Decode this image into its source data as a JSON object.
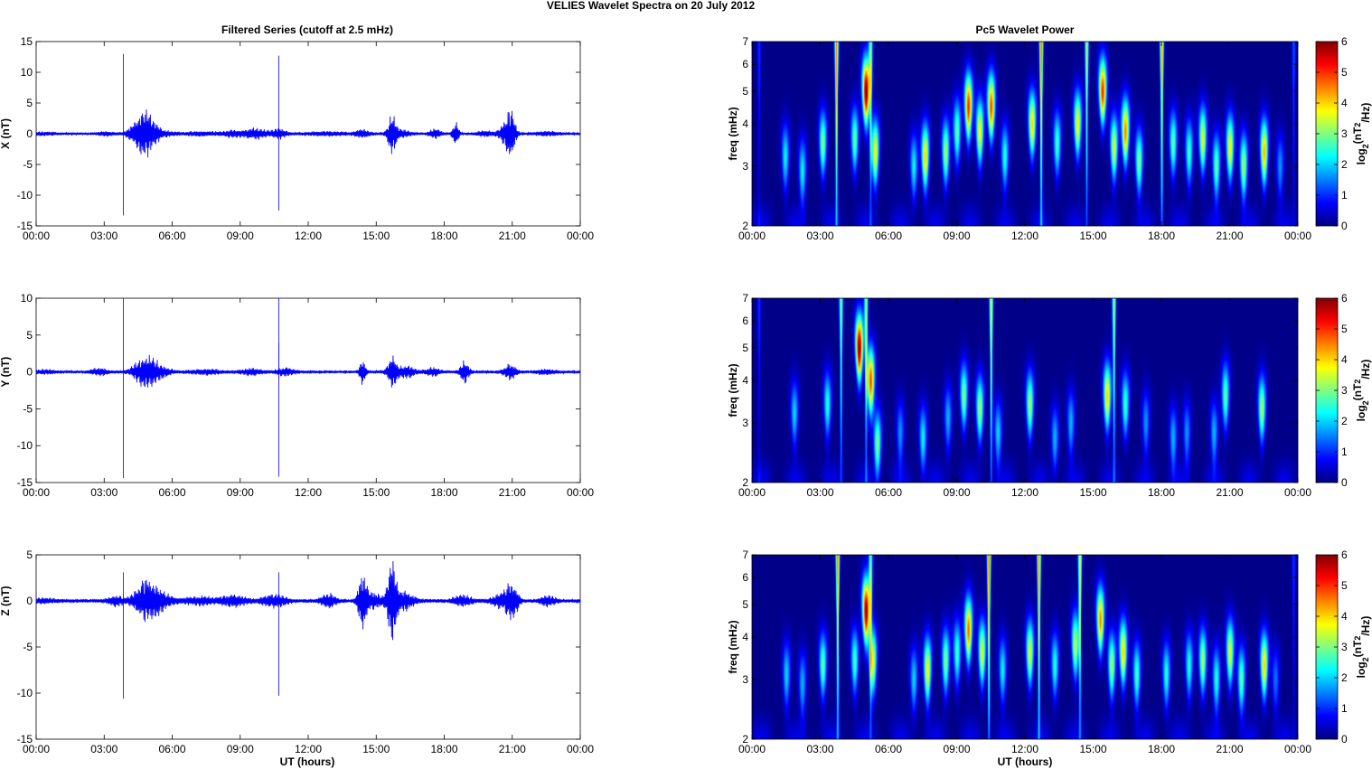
{
  "figure": {
    "suptitle": "VELIES Wavelet Spectra on 20 July      2012",
    "left_title": "Filtered Series (cutoff at 2.5 mHz)",
    "right_title": "Pc5 Wavelet Power",
    "xlabel": "UT (hours)",
    "time_ticks": [
      "00:00",
      "03:00",
      "06:00",
      "09:00",
      "12:00",
      "15:00",
      "18:00",
      "21:00",
      "00:00"
    ]
  },
  "chart_data": [
    {
      "type": "line",
      "panel": "X",
      "ylabel": "X (nT)",
      "ylim": [
        -15,
        15
      ],
      "yticks": [
        15,
        10,
        5,
        0,
        -5,
        -10,
        -15
      ],
      "color": "#0000ff",
      "xlim_hours": [
        0,
        24
      ],
      "series": [
        {
          "name": "",
          "spikes": [
            [
              3.85,
              13,
              -13.3
            ],
            [
              10.7,
              12.7,
              -12.5
            ]
          ],
          "bursts": [
            [
              0.35,
              0.8,
              0.2
            ],
            [
              3.1,
              0.5,
              0.3
            ],
            [
              4.65,
              0.7,
              2.8
            ],
            [
              4.95,
              0.6,
              1.3
            ],
            [
              5.4,
              1.0,
              0.5
            ],
            [
              7.2,
              1.0,
              0.3
            ],
            [
              8.7,
              0.9,
              0.5
            ],
            [
              9.7,
              0.7,
              0.8
            ],
            [
              10.7,
              0.5,
              0.8
            ],
            [
              12.8,
              1.3,
              0.3
            ],
            [
              14.4,
              0.5,
              0.6
            ],
            [
              15.7,
              0.3,
              3.0
            ],
            [
              16.1,
              0.6,
              0.6
            ],
            [
              17.6,
              0.4,
              0.7
            ],
            [
              18.5,
              0.2,
              2.0
            ],
            [
              19.8,
              0.6,
              0.4
            ],
            [
              20.7,
              0.4,
              1.6
            ],
            [
              20.95,
              0.3,
              3.3
            ],
            [
              22.5,
              0.8,
              0.3
            ]
          ]
        }
      ]
    },
    {
      "type": "line",
      "panel": "Y",
      "ylabel": "Y (nT)",
      "ylim": [
        -15,
        10
      ],
      "yticks": [
        10,
        5,
        0,
        -5,
        -10,
        -15
      ],
      "color": "#0000ff",
      "xlim_hours": [
        0,
        24
      ],
      "series": [
        {
          "name": "",
          "spikes": [
            [
              3.85,
              10,
              -14.4
            ],
            [
              10.7,
              10,
              -14.2
            ],
            [
              10.7,
              3.9,
              -1
            ]
          ],
          "bursts": [
            [
              0.35,
              0.8,
              0.2
            ],
            [
              2.8,
              0.5,
              0.5
            ],
            [
              4.75,
              0.7,
              1.8
            ],
            [
              5.3,
              0.8,
              1.0
            ],
            [
              7.5,
              1.0,
              0.3
            ],
            [
              9.5,
              0.7,
              0.4
            ],
            [
              11.0,
              0.6,
              0.5
            ],
            [
              14.4,
              0.2,
              1.8
            ],
            [
              15.7,
              0.3,
              2.1
            ],
            [
              16.3,
              0.6,
              0.8
            ],
            [
              17.5,
              0.5,
              0.5
            ],
            [
              18.9,
              0.3,
              1.5
            ],
            [
              20.9,
              0.4,
              1.0
            ],
            [
              22.5,
              0.6,
              0.3
            ]
          ]
        }
      ]
    },
    {
      "type": "line",
      "panel": "Z",
      "ylabel": "Z (nT)",
      "ylim": [
        -15,
        5
      ],
      "yticks": [
        5,
        0,
        -5,
        -10,
        -15
      ],
      "color": "#0000ff",
      "xlim_hours": [
        0,
        24
      ],
      "series": [
        {
          "name": "",
          "spikes": [
            [
              3.85,
              3.1,
              -10.6
            ],
            [
              10.7,
              3.1,
              -10.3
            ]
          ],
          "bursts": [
            [
              0.35,
              0.8,
              0.2
            ],
            [
              3.5,
              0.5,
              0.5
            ],
            [
              4.85,
              0.8,
              2.0
            ],
            [
              5.4,
              0.9,
              0.8
            ],
            [
              7.2,
              1.0,
              0.4
            ],
            [
              8.7,
              0.9,
              0.6
            ],
            [
              10.5,
              0.8,
              0.7
            ],
            [
              12.9,
              0.5,
              0.8
            ],
            [
              14.4,
              0.3,
              3.0
            ],
            [
              14.9,
              0.6,
              0.8
            ],
            [
              15.7,
              0.3,
              4.4
            ],
            [
              16.2,
              0.7,
              1.0
            ],
            [
              18.8,
              0.6,
              0.6
            ],
            [
              20.5,
              0.6,
              0.8
            ],
            [
              21.0,
              0.4,
              1.9
            ],
            [
              22.6,
              0.5,
              0.5
            ]
          ]
        }
      ]
    },
    {
      "type": "heatmap",
      "panel": "X",
      "ylabel": "freq (mHz)",
      "ylim": [
        2,
        7
      ],
      "yscale": "log",
      "yticks": [
        2,
        3,
        4,
        5,
        6,
        7
      ],
      "colorbar_label": "log2(nT2/Hz)",
      "clim": [
        0,
        6
      ],
      "colorbar_ticks": [
        0,
        1,
        2,
        3,
        4,
        5,
        6
      ],
      "xlim_hours": [
        0,
        24
      ],
      "colormap": "jet",
      "blobs": [
        [
          1.45,
          3.2,
          2.2
        ],
        [
          2.2,
          2.9,
          2.2
        ],
        [
          3.1,
          3.5,
          3.0
        ],
        [
          3.7,
          7.0,
          4.5
        ],
        [
          4.5,
          3.6,
          2.8
        ],
        [
          5.0,
          5.0,
          6.0
        ],
        [
          5.4,
          3.3,
          3.8
        ],
        [
          5.2,
          7.0,
          2.6
        ],
        [
          7.1,
          3.0,
          2.2
        ],
        [
          7.6,
          3.2,
          4.0
        ],
        [
          8.5,
          3.3,
          3.2
        ],
        [
          9.0,
          3.8,
          2.8
        ],
        [
          9.5,
          4.5,
          5.0
        ],
        [
          10.0,
          3.8,
          3.8
        ],
        [
          10.5,
          4.5,
          4.8
        ],
        [
          11.1,
          3.2,
          2.4
        ],
        [
          12.3,
          4.0,
          4.0
        ],
        [
          12.7,
          7.0,
          4.6
        ],
        [
          13.4,
          3.5,
          2.6
        ],
        [
          14.3,
          4.0,
          3.8
        ],
        [
          14.7,
          7.0,
          3.3
        ],
        [
          15.4,
          5.0,
          5.0
        ],
        [
          15.9,
          3.4,
          3.5
        ],
        [
          16.4,
          3.8,
          4.5
        ],
        [
          17.0,
          3.1,
          3.0
        ],
        [
          18.0,
          7.0,
          4.3
        ],
        [
          18.5,
          3.5,
          2.8
        ],
        [
          19.2,
          3.3,
          2.6
        ],
        [
          19.8,
          3.6,
          3.6
        ],
        [
          20.4,
          3.0,
          2.8
        ],
        [
          21.0,
          3.4,
          3.8
        ],
        [
          21.6,
          3.0,
          3.2
        ],
        [
          22.5,
          3.3,
          4.2
        ],
        [
          23.2,
          3.0,
          1.6
        ],
        [
          23.8,
          7.0,
          1.2
        ],
        [
          0.3,
          7.0,
          1.0
        ]
      ]
    },
    {
      "type": "heatmap",
      "panel": "Y",
      "ylabel": "freq (mHz)",
      "ylim": [
        2,
        7
      ],
      "yscale": "log",
      "yticks": [
        2,
        3,
        4,
        5,
        6,
        7
      ],
      "colorbar_label": "log2(nT2/Hz)",
      "clim": [
        0,
        6
      ],
      "colorbar_ticks": [
        0,
        1,
        2,
        3,
        4,
        5,
        6
      ],
      "xlim_hours": [
        0,
        24
      ],
      "colormap": "jet",
      "blobs": [
        [
          1.85,
          3.2,
          2.0
        ],
        [
          3.3,
          3.4,
          2.4
        ],
        [
          3.9,
          7.0,
          3.0
        ],
        [
          4.7,
          5.0,
          6.0
        ],
        [
          5.2,
          4.0,
          4.8
        ],
        [
          5.5,
          2.6,
          3.0
        ],
        [
          5.0,
          7.0,
          3.0
        ],
        [
          6.5,
          2.8,
          1.6
        ],
        [
          7.5,
          2.7,
          2.2
        ],
        [
          8.6,
          3.1,
          1.8
        ],
        [
          9.3,
          3.6,
          3.0
        ],
        [
          10.0,
          3.3,
          3.2
        ],
        [
          10.5,
          7.0,
          3.6
        ],
        [
          10.8,
          2.8,
          2.0
        ],
        [
          12.2,
          3.4,
          3.2
        ],
        [
          13.3,
          2.7,
          1.8
        ],
        [
          14.0,
          3.0,
          1.8
        ],
        [
          15.6,
          3.6,
          4.0
        ],
        [
          15.9,
          7.0,
          3.2
        ],
        [
          16.4,
          3.4,
          2.6
        ],
        [
          17.3,
          3.0,
          1.6
        ],
        [
          18.5,
          2.7,
          1.8
        ],
        [
          19.1,
          2.8,
          1.6
        ],
        [
          20.3,
          2.8,
          1.8
        ],
        [
          20.8,
          3.6,
          2.8
        ],
        [
          22.4,
          3.3,
          3.2
        ],
        [
          0.3,
          7.0,
          1.0
        ]
      ]
    },
    {
      "type": "heatmap",
      "panel": "Z",
      "ylabel": "freq (mHz)",
      "ylim": [
        2,
        7
      ],
      "yscale": "log",
      "yticks": [
        2,
        3,
        4,
        5,
        6,
        7
      ],
      "colorbar_label": "log2(nT2/Hz)",
      "clim": [
        0,
        6
      ],
      "colorbar_ticks": [
        0,
        1,
        2,
        3,
        4,
        5,
        6
      ],
      "xlim_hours": [
        0,
        24
      ],
      "colormap": "jet",
      "blobs": [
        [
          1.5,
          3.1,
          2.0
        ],
        [
          2.2,
          2.9,
          1.8
        ],
        [
          3.1,
          3.3,
          2.8
        ],
        [
          3.75,
          7.0,
          4.5
        ],
        [
          4.5,
          3.4,
          2.6
        ],
        [
          5.0,
          4.8,
          5.8
        ],
        [
          5.3,
          3.4,
          3.6
        ],
        [
          5.2,
          7.0,
          2.6
        ],
        [
          7.1,
          3.0,
          2.0
        ],
        [
          7.7,
          3.2,
          3.8
        ],
        [
          8.5,
          3.4,
          3.0
        ],
        [
          9.0,
          3.6,
          2.6
        ],
        [
          9.5,
          4.2,
          4.6
        ],
        [
          10.1,
          3.6,
          3.6
        ],
        [
          10.4,
          7.0,
          4.6
        ],
        [
          11.0,
          3.2,
          2.2
        ],
        [
          12.2,
          3.6,
          3.6
        ],
        [
          12.6,
          7.0,
          4.4
        ],
        [
          13.3,
          3.3,
          2.4
        ],
        [
          14.2,
          3.8,
          3.4
        ],
        [
          14.4,
          7.0,
          3.6
        ],
        [
          15.3,
          4.5,
          4.4
        ],
        [
          15.8,
          3.3,
          3.2
        ],
        [
          16.3,
          3.6,
          4.0
        ],
        [
          16.9,
          3.1,
          2.6
        ],
        [
          18.2,
          3.1,
          2.4
        ],
        [
          19.2,
          3.3,
          2.4
        ],
        [
          19.8,
          3.4,
          3.2
        ],
        [
          20.4,
          3.0,
          2.4
        ],
        [
          21.0,
          3.6,
          3.6
        ],
        [
          21.5,
          3.0,
          2.8
        ],
        [
          22.5,
          3.3,
          4.0
        ],
        [
          23.0,
          3.0,
          1.4
        ],
        [
          23.8,
          7.0,
          1.0
        ]
      ]
    }
  ]
}
